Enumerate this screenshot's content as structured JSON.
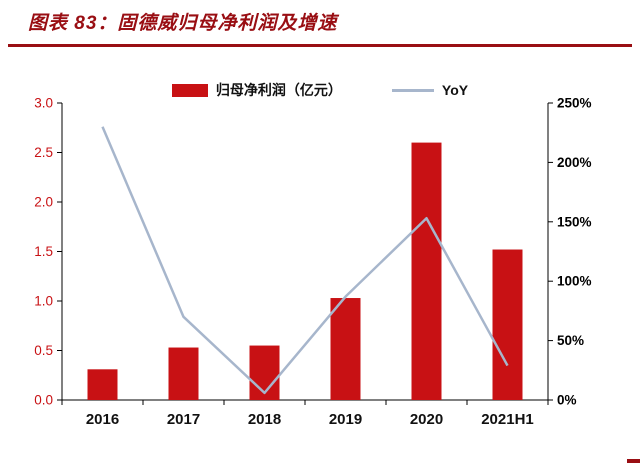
{
  "colors": {
    "accent_red": "#990e13",
    "axis_line": "#000000"
  },
  "header": {
    "title": "图表 83：固德威归母净利润及增速"
  },
  "chart_data": {
    "type": "bar+line combo",
    "categories": [
      "2016",
      "2017",
      "2018",
      "2019",
      "2020",
      "2021H1"
    ],
    "series": [
      {
        "name": "归母净利润（亿元）",
        "type": "bar",
        "axis": "left",
        "color": "#c81114",
        "values": [
          0.31,
          0.53,
          0.55,
          1.03,
          2.6,
          1.52
        ]
      },
      {
        "name": "YoY",
        "type": "line",
        "axis": "right",
        "color": "#a7b6cc",
        "unit": "%",
        "values": [
          230,
          70,
          6,
          87,
          153,
          29
        ]
      }
    ],
    "left_axis": {
      "min": 0,
      "max": 3.0,
      "tick_labels": [
        "3.0",
        "2.5",
        "2.0",
        "1.5",
        "1.0",
        "0.5",
        "0.0"
      ],
      "label_color": "#c81114"
    },
    "right_axis": {
      "min": 0,
      "max": 250,
      "tick_labels": [
        "250%",
        "200%",
        "150%",
        "100%",
        "50%",
        "0%"
      ],
      "label_color": "#000000"
    },
    "legend_position": "top",
    "grid": false
  }
}
